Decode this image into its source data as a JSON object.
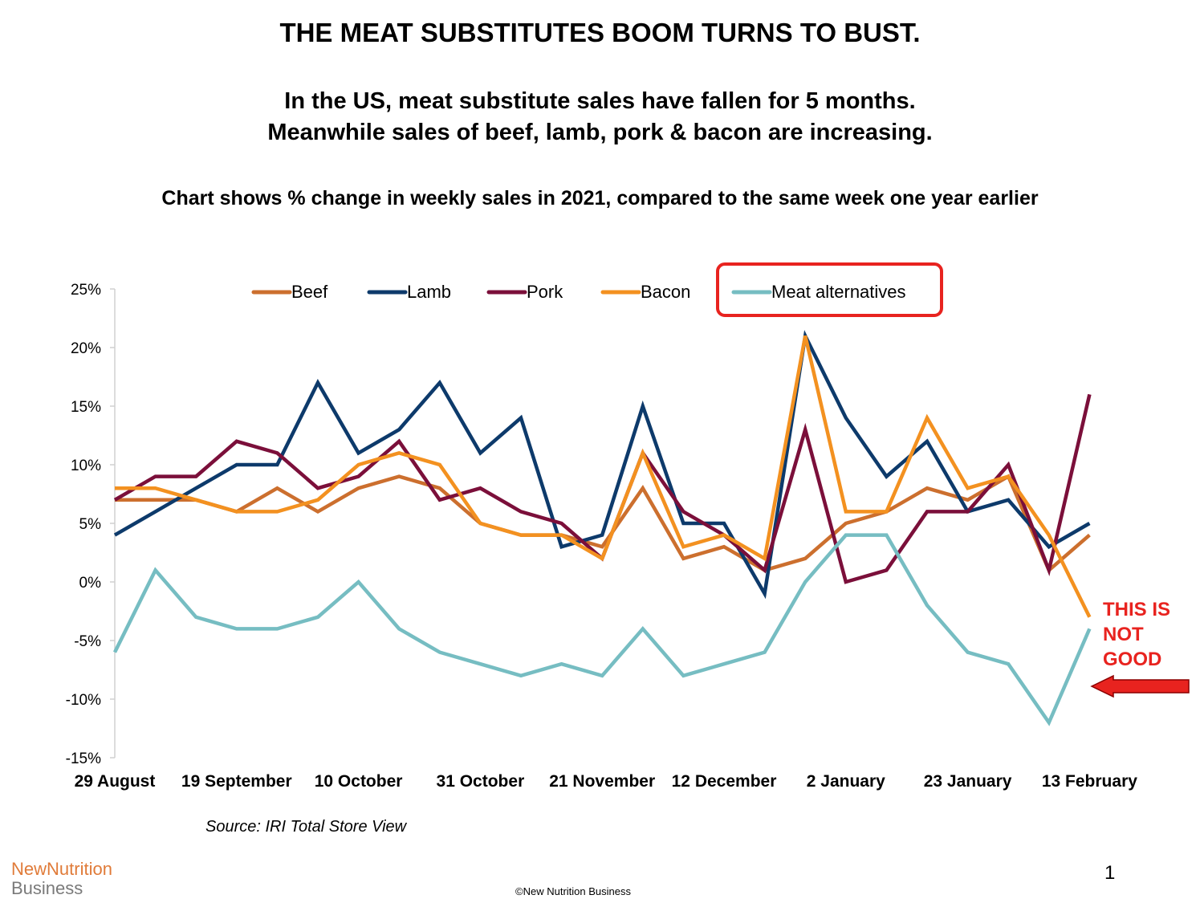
{
  "header": {
    "title": "THE MEAT SUBSTITUTES BOOM TURNS TO BUST.",
    "subtitle_line1": "In the US, meat substitute sales have fallen for 5 months.",
    "subtitle_line2": "Meanwhile sales of beef, lamb, pork & bacon are increasing.",
    "description": "Chart shows % change in weekly sales in 2021, compared to the same week one year earlier"
  },
  "footer": {
    "source": "Source: IRI Total Store View",
    "logo_line1": "NewNutrition",
    "logo_line2": "Business",
    "copyright": "©New Nutrition Business",
    "page_number": "1"
  },
  "annotation": {
    "line1": "THIS IS",
    "line2": "NOT",
    "line3": "GOOD",
    "color": "#e8231f",
    "highlight_box_color": "#e8231f"
  },
  "chart_data": {
    "type": "line",
    "ylim": [
      -15,
      25
    ],
    "yticks": [
      25,
      20,
      15,
      10,
      5,
      0,
      -5,
      -10,
      -15
    ],
    "ytick_labels": [
      "25%",
      "20%",
      "15%",
      "10%",
      "5%",
      "0%",
      "-5%",
      "-10%",
      "-15%"
    ],
    "x_tick_labels": [
      "29 August",
      "19 September",
      "10 October",
      "31 October",
      "21 November",
      "12 December",
      "2 January",
      "23 January",
      "13 February"
    ],
    "grid": false,
    "legend_position": "top",
    "series": [
      {
        "name": "Beef",
        "color": "#cc6f2e",
        "values": [
          7,
          7,
          7,
          6,
          8,
          6,
          8,
          9,
          8,
          5,
          4,
          4,
          3,
          8,
          2,
          3,
          1,
          2,
          5,
          6,
          8,
          7,
          9,
          1,
          4
        ]
      },
      {
        "name": "Lamb",
        "color": "#0d3a6b",
        "values": [
          4,
          6,
          8,
          10,
          10,
          17,
          11,
          13,
          17,
          11,
          14,
          3,
          4,
          15,
          5,
          5,
          -1,
          21,
          14,
          9,
          12,
          6,
          7,
          3,
          5
        ]
      },
      {
        "name": "Pork",
        "color": "#7b0f3a",
        "values": [
          7,
          9,
          9,
          12,
          11,
          8,
          9,
          12,
          7,
          8,
          6,
          5,
          2,
          11,
          6,
          4,
          1,
          13,
          0,
          1,
          6,
          6,
          10,
          1,
          16
        ]
      },
      {
        "name": "Bacon",
        "color": "#f39120",
        "values": [
          8,
          8,
          7,
          6,
          6,
          7,
          10,
          11,
          10,
          5,
          4,
          4,
          2,
          11,
          3,
          4,
          2,
          21,
          6,
          6,
          14,
          8,
          9,
          4,
          -3
        ]
      },
      {
        "name": "Meat alternatives",
        "color": "#76bdc2",
        "values": [
          -6,
          1,
          -3,
          -4,
          -4,
          -3,
          0,
          -4,
          -6,
          -7,
          -8,
          -7,
          -8,
          -4,
          -8,
          -7,
          -6,
          0,
          4,
          4,
          -2,
          -6,
          -7,
          -12,
          -4
        ]
      }
    ]
  }
}
